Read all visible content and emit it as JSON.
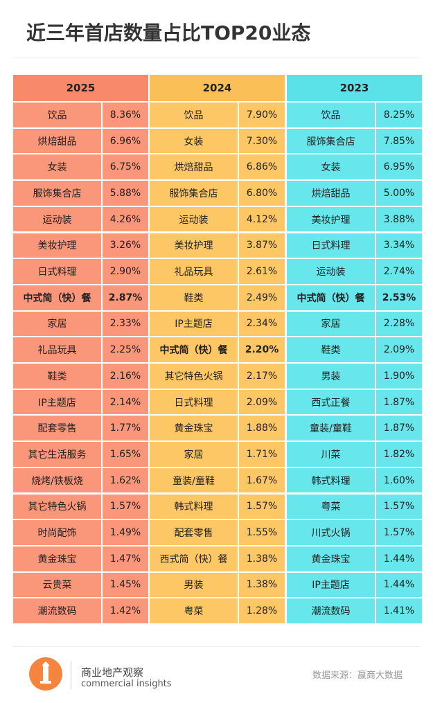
{
  "header": {
    "title": "近三年首店数量占比TOP20业态"
  },
  "tables": [
    {
      "year": "2025",
      "header_color": "#f8896b",
      "cell_color": "#fa9679",
      "bold_row": 7,
      "rows": [
        [
          "饮品",
          "8.36%"
        ],
        [
          "烘焙甜品",
          "6.96%"
        ],
        [
          "女装",
          "6.75%"
        ],
        [
          "服饰集合店",
          "5.88%"
        ],
        [
          "运动装",
          "4.26%"
        ],
        [
          "美妆护理",
          "3.26%"
        ],
        [
          "日式料理",
          "2.90%"
        ],
        [
          "中式简（快）餐",
          "2.87%"
        ],
        [
          "家居",
          "2.33%"
        ],
        [
          "礼品玩具",
          "2.25%"
        ],
        [
          "鞋类",
          "2.16%"
        ],
        [
          "IP主题店",
          "2.14%"
        ],
        [
          "配套零售",
          "1.77%"
        ],
        [
          "其它生活服务",
          "1.65%"
        ],
        [
          "烧烤/铁板烧",
          "1.62%"
        ],
        [
          "其它特色火锅",
          "1.57%"
        ],
        [
          "时尚配饰",
          "1.49%"
        ],
        [
          "黄金珠宝",
          "1.47%"
        ],
        [
          "云贵菜",
          "1.45%"
        ],
        [
          "潮流数码",
          "1.42%"
        ]
      ]
    },
    {
      "year": "2024",
      "header_color": "#fbbf57",
      "cell_color": "#fdc766",
      "bold_row": 9,
      "rows": [
        [
          "饮品",
          "7.90%"
        ],
        [
          "女装",
          "7.30%"
        ],
        [
          "烘焙甜品",
          "6.86%"
        ],
        [
          "服饰集合店",
          "6.80%"
        ],
        [
          "运动装",
          "4.12%"
        ],
        [
          "美妆护理",
          "3.87%"
        ],
        [
          "礼品玩具",
          "2.61%"
        ],
        [
          "鞋类",
          "2.49%"
        ],
        [
          "IP主题店",
          "2.34%"
        ],
        [
          "中式简（快）餐",
          "2.20%"
        ],
        [
          "其它特色火锅",
          "2.17%"
        ],
        [
          "日式料理",
          "2.09%"
        ],
        [
          "黄金珠宝",
          "1.88%"
        ],
        [
          "家居",
          "1.71%"
        ],
        [
          "童装/童鞋",
          "1.67%"
        ],
        [
          "韩式料理",
          "1.57%"
        ],
        [
          "配套零售",
          "1.55%"
        ],
        [
          "西式简（快）餐",
          "1.38%"
        ],
        [
          "男装",
          "1.38%"
        ],
        [
          "粤菜",
          "1.28%"
        ]
      ]
    },
    {
      "year": "2023",
      "header_color": "#5ae2e8",
      "cell_color": "#67e6eb",
      "bold_row": 7,
      "rows": [
        [
          "饮品",
          "8.25%"
        ],
        [
          "服饰集合店",
          "7.85%"
        ],
        [
          "女装",
          "6.95%"
        ],
        [
          "烘焙甜品",
          "5.00%"
        ],
        [
          "美妆护理",
          "3.88%"
        ],
        [
          "日式料理",
          "3.34%"
        ],
        [
          "运动装",
          "2.74%"
        ],
        [
          "中式简（快）餐",
          "2.53%"
        ],
        [
          "家居",
          "2.28%"
        ],
        [
          "鞋类",
          "2.09%"
        ],
        [
          "男装",
          "1.90%"
        ],
        [
          "西式正餐",
          "1.87%"
        ],
        [
          "童装/童鞋",
          "1.87%"
        ],
        [
          "川菜",
          "1.82%"
        ],
        [
          "韩式料理",
          "1.60%"
        ],
        [
          "粤菜",
          "1.57%"
        ],
        [
          "川式火锅",
          "1.57%"
        ],
        [
          "黄金珠宝",
          "1.44%"
        ],
        [
          "IP主题店",
          "1.44%"
        ],
        [
          "潮流数码",
          "1.41%"
        ]
      ]
    }
  ],
  "footer": {
    "brand": "商业地产观察",
    "brand_en": "commercial insights",
    "source": "数据来源：赢商大数据"
  }
}
